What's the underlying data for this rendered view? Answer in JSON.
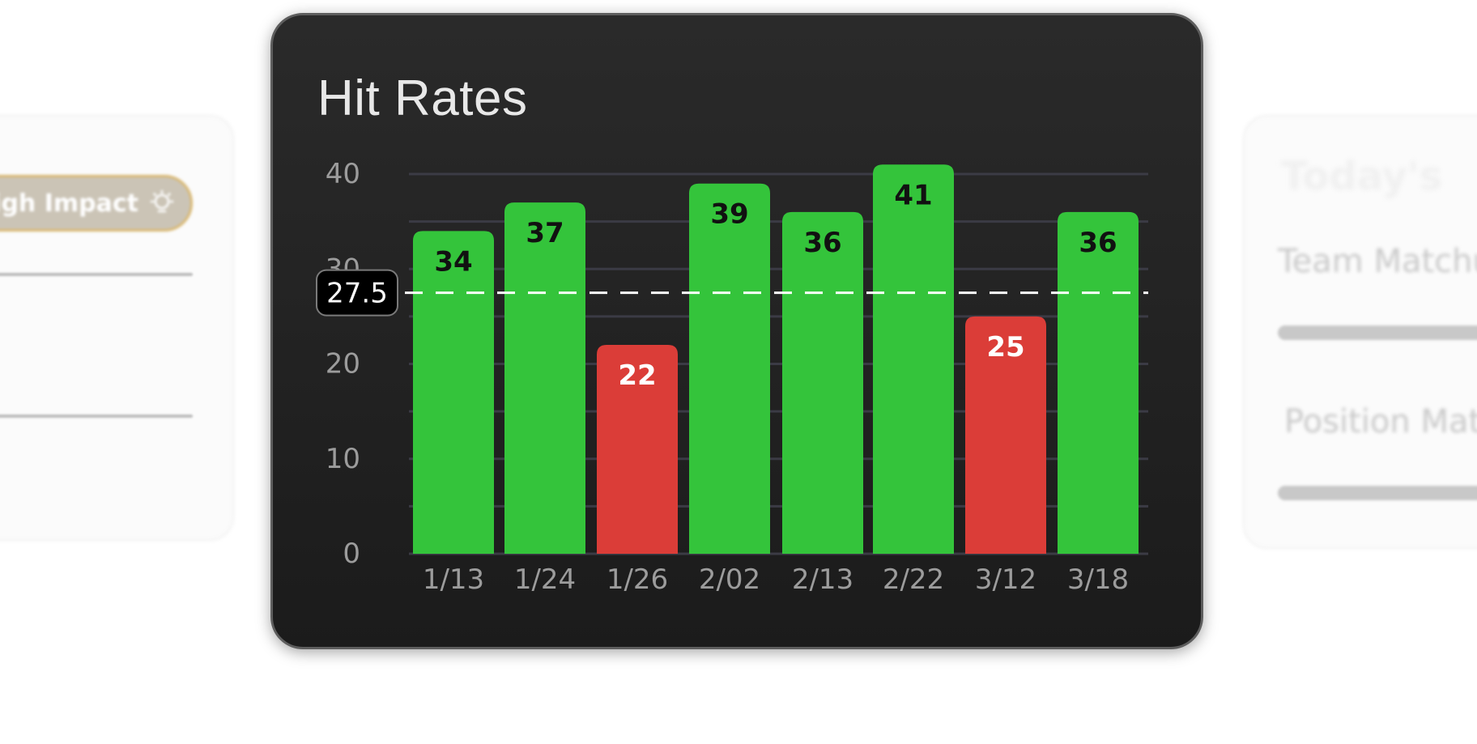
{
  "background": {
    "left_card": {
      "badge_label": "High Impact",
      "badge_icon": "lightbulb-icon"
    },
    "right_card": {
      "heading": "Team Matchup",
      "ghost_title": "Today's",
      "row_labels": [
        "Team Matchup",
        "Position Matchup"
      ]
    }
  },
  "colors": {
    "hit": "#34c43b",
    "miss": "#db3d38",
    "card_background": "#242424",
    "grid": "#3b3b45",
    "reference_line": "#ffffff"
  },
  "chart_data": {
    "type": "bar",
    "title": "Hit Rates",
    "xlabel": "",
    "ylabel": "",
    "categories": [
      "1/13",
      "1/24",
      "1/26",
      "2/02",
      "2/13",
      "2/22",
      "3/12",
      "3/18"
    ],
    "values": [
      34,
      37,
      22,
      39,
      36,
      41,
      25,
      36
    ],
    "status": [
      "hit",
      "hit",
      "miss",
      "hit",
      "hit",
      "hit",
      "miss",
      "hit"
    ],
    "ylim": [
      0,
      40
    ],
    "y_ticks": [
      "0",
      "10",
      "20",
      "30",
      "40"
    ],
    "grid": true,
    "reference_line": {
      "value": 27.5,
      "label": "27.5",
      "style": "dashed"
    },
    "legend": "none"
  }
}
